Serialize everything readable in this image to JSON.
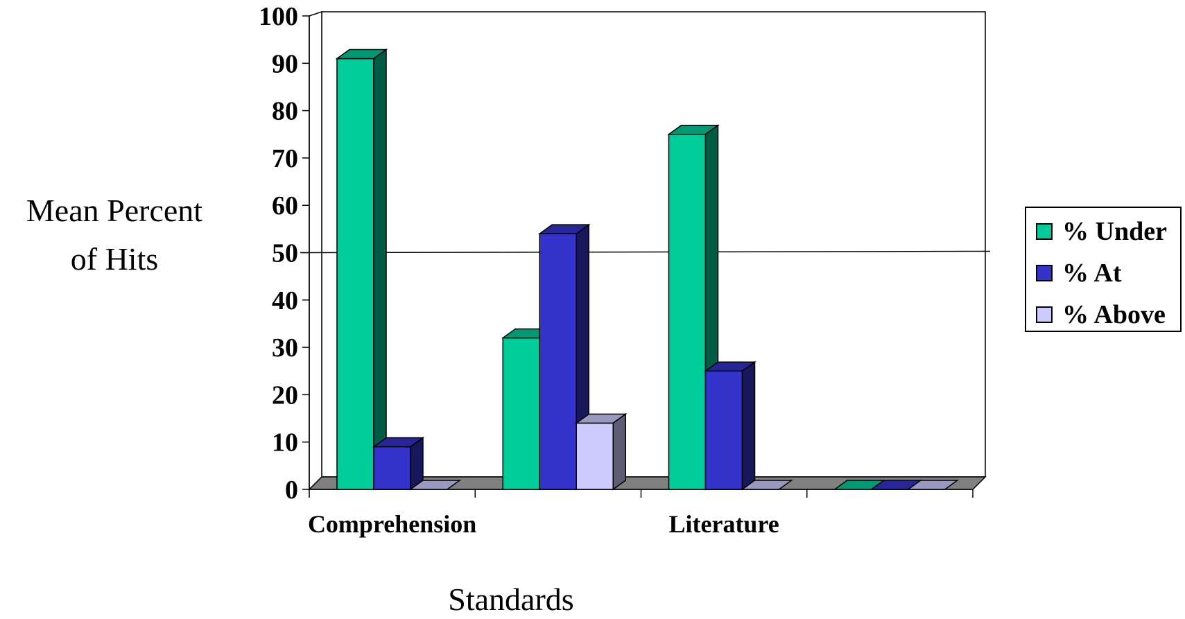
{
  "chart_data": {
    "type": "bar",
    "style": "3d-clustered-column",
    "categories": [
      "Comprehension",
      "",
      "Literature",
      ""
    ],
    "category_tick_labels": [
      "Comprehension",
      "Literature"
    ],
    "series": [
      {
        "name": "% Under",
        "values": [
          91,
          32,
          75,
          0
        ],
        "color": "#00cc99"
      },
      {
        "name": "% At",
        "values": [
          9,
          54,
          25,
          0
        ],
        "color": "#3333cc"
      },
      {
        "name": "% Above",
        "values": [
          0,
          14,
          0,
          0
        ],
        "color": "#ccccff"
      }
    ],
    "y_ticks": [
      "0",
      "10",
      "20",
      "30",
      "40",
      "50",
      "60",
      "70",
      "80",
      "90",
      "100"
    ],
    "ylim": [
      0,
      100
    ],
    "reference_line": 50,
    "ylabel_lines": [
      "Mean Percent",
      "of Hits"
    ],
    "xlabel": "Standards",
    "grid": false,
    "legend_position": "right"
  }
}
